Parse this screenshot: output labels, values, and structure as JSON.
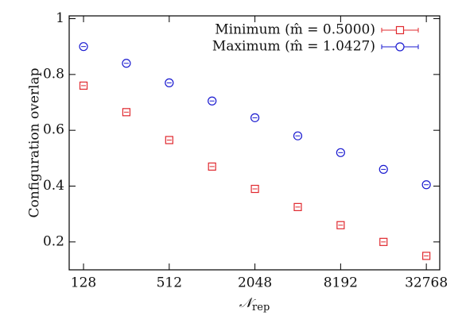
{
  "chart_data": {
    "type": "scatter",
    "ylabel": "Configuration overlap",
    "xlabel": {
      "main": "𝒩",
      "sub": "rep"
    },
    "x": [
      128,
      256,
      512,
      1024,
      2048,
      4096,
      8192,
      16384,
      32768
    ],
    "xscale": "log",
    "xbase": 2,
    "xlim": [
      101.5,
      40700
    ],
    "xticks": [
      128,
      512,
      2048,
      8192,
      32768
    ],
    "ylim": [
      0.1,
      1.01
    ],
    "yticks": [
      0.2,
      0.4,
      0.6,
      0.8,
      1
    ],
    "legend": "upper right",
    "series": [
      {
        "name": "Minimum (m̂ = 0.5000)",
        "color": "#e0282e",
        "marker": "square",
        "values": [
          0.76,
          0.665,
          0.565,
          0.47,
          0.39,
          0.325,
          0.26,
          0.2,
          0.15
        ]
      },
      {
        "name": "Maximum (m̂ = 1.0427)",
        "color": "#1a1ad0",
        "marker": "circle",
        "values": [
          0.9,
          0.84,
          0.77,
          0.705,
          0.645,
          0.58,
          0.52,
          0.46,
          0.405
        ]
      }
    ]
  }
}
